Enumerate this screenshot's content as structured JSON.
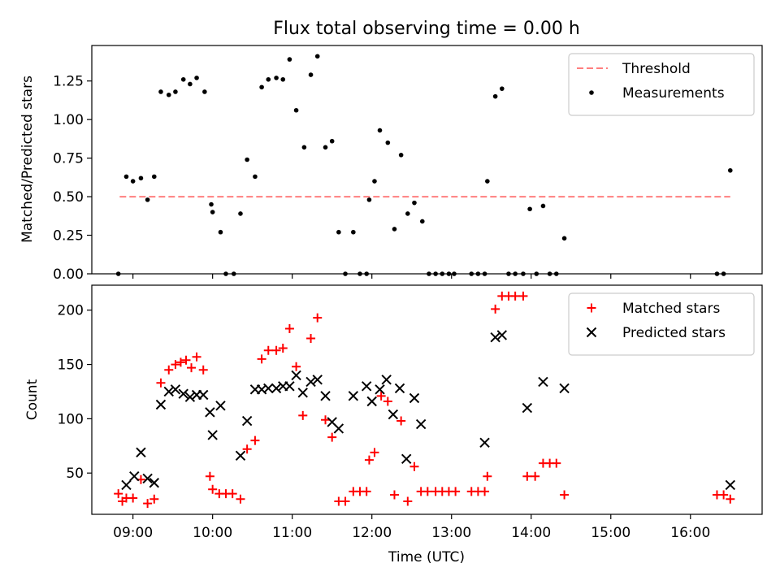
{
  "chart_data": [
    {
      "type": "scatter",
      "title": "Flux total observing time = 0.00 h",
      "xlabel": "",
      "ylabel": "Matched/Predicted stars",
      "ylim": [
        0,
        1.48
      ],
      "xlim": [
        "08:29",
        "16:54"
      ],
      "yticks": [
        "0.00",
        "0.25",
        "0.50",
        "0.75",
        "1.00",
        "1.25"
      ],
      "legend_position": "top-right",
      "threshold": {
        "name": "Threshold",
        "value": 0.5,
        "x_start": "08:50",
        "x_end": "16:30",
        "color": "#ff7f7f"
      },
      "series": [
        {
          "name": "Measurements",
          "color": "#000000",
          "marker": "dot",
          "points": [
            [
              "08:49",
              0.0
            ],
            [
              "08:55",
              0.63
            ],
            [
              "09:00",
              0.6
            ],
            [
              "09:06",
              0.62
            ],
            [
              "09:11",
              0.48
            ],
            [
              "09:16",
              0.63
            ],
            [
              "09:21",
              1.18
            ],
            [
              "09:27",
              1.16
            ],
            [
              "09:32",
              1.18
            ],
            [
              "09:38",
              1.26
            ],
            [
              "09:43",
              1.23
            ],
            [
              "09:48",
              1.27
            ],
            [
              "09:54",
              1.18
            ],
            [
              "09:59",
              0.45
            ],
            [
              "10:00",
              0.4
            ],
            [
              "10:06",
              0.27
            ],
            [
              "10:10",
              0.0
            ],
            [
              "10:16",
              0.0
            ],
            [
              "10:21",
              0.39
            ],
            [
              "10:26",
              0.74
            ],
            [
              "10:32",
              0.63
            ],
            [
              "10:37",
              1.21
            ],
            [
              "10:42",
              1.26
            ],
            [
              "10:48",
              1.27
            ],
            [
              "10:53",
              1.26
            ],
            [
              "10:58",
              1.39
            ],
            [
              "11:03",
              1.06
            ],
            [
              "11:09",
              0.82
            ],
            [
              "11:14",
              1.29
            ],
            [
              "11:19",
              1.41
            ],
            [
              "11:25",
              0.82
            ],
            [
              "11:30",
              0.86
            ],
            [
              "11:35",
              0.27
            ],
            [
              "11:40",
              0.0
            ],
            [
              "11:46",
              0.27
            ],
            [
              "11:51",
              0.0
            ],
            [
              "11:56",
              0.0
            ],
            [
              "11:58",
              0.48
            ],
            [
              "12:02",
              0.6
            ],
            [
              "12:06",
              0.93
            ],
            [
              "12:12",
              0.85
            ],
            [
              "12:17",
              0.29
            ],
            [
              "12:22",
              0.77
            ],
            [
              "12:27",
              0.39
            ],
            [
              "12:32",
              0.46
            ],
            [
              "12:38",
              0.34
            ],
            [
              "12:43",
              0.0
            ],
            [
              "12:48",
              0.0
            ],
            [
              "12:53",
              0.0
            ],
            [
              "12:58",
              0.0
            ],
            [
              "13:02",
              0.0
            ],
            [
              "13:15",
              0.0
            ],
            [
              "13:20",
              0.0
            ],
            [
              "13:25",
              0.0
            ],
            [
              "13:27",
              0.6
            ],
            [
              "13:33",
              1.15
            ],
            [
              "13:38",
              1.2
            ],
            [
              "13:43",
              0.0
            ],
            [
              "13:48",
              0.0
            ],
            [
              "13:54",
              0.0
            ],
            [
              "13:59",
              0.42
            ],
            [
              "14:04",
              0.0
            ],
            [
              "14:09",
              0.44
            ],
            [
              "14:14",
              0.0
            ],
            [
              "14:19",
              0.0
            ],
            [
              "14:25",
              0.23
            ],
            [
              "16:20",
              0.0
            ],
            [
              "16:25",
              0.0
            ],
            [
              "16:30",
              0.67
            ]
          ]
        }
      ]
    },
    {
      "type": "scatter",
      "title": "",
      "xlabel": "Time (UTC)",
      "ylabel": "Count",
      "ylim": [
        12,
        223
      ],
      "xlim": [
        "08:29",
        "16:54"
      ],
      "xticks": [
        "09:00",
        "10:00",
        "11:00",
        "12:00",
        "13:00",
        "14:00",
        "15:00",
        "16:00"
      ],
      "yticks": [
        "50",
        "100",
        "150",
        "200"
      ],
      "legend_position": "top-right",
      "series": [
        {
          "name": "Matched stars",
          "color": "#ff0000",
          "marker": "plus",
          "points": [
            [
              "08:49",
              31
            ],
            [
              "08:52",
              24
            ],
            [
              "08:55",
              27
            ],
            [
              "09:00",
              27
            ],
            [
              "09:06",
              44
            ],
            [
              "09:11",
              22
            ],
            [
              "09:16",
              26
            ],
            [
              "09:21",
              133
            ],
            [
              "09:27",
              145
            ],
            [
              "09:32",
              150
            ],
            [
              "09:36",
              152
            ],
            [
              "09:40",
              154
            ],
            [
              "09:44",
              147
            ],
            [
              "09:48",
              157
            ],
            [
              "09:53",
              145
            ],
            [
              "09:58",
              47
            ],
            [
              "10:00",
              35
            ],
            [
              "10:05",
              31
            ],
            [
              "10:10",
              31
            ],
            [
              "10:15",
              31
            ],
            [
              "10:21",
              26
            ],
            [
              "10:26",
              72
            ],
            [
              "10:32",
              80
            ],
            [
              "10:37",
              155
            ],
            [
              "10:42",
              163
            ],
            [
              "10:48",
              163
            ],
            [
              "10:53",
              165
            ],
            [
              "10:58",
              183
            ],
            [
              "11:03",
              148
            ],
            [
              "11:08",
              103
            ],
            [
              "11:14",
              174
            ],
            [
              "11:19",
              193
            ],
            [
              "11:25",
              99
            ],
            [
              "11:30",
              83
            ],
            [
              "11:35",
              24
            ],
            [
              "11:40",
              24
            ],
            [
              "11:46",
              33
            ],
            [
              "11:51",
              33
            ],
            [
              "11:56",
              33
            ],
            [
              "11:58",
              62
            ],
            [
              "12:02",
              69
            ],
            [
              "12:07",
              121
            ],
            [
              "12:12",
              116
            ],
            [
              "12:17",
              30
            ],
            [
              "12:22",
              98
            ],
            [
              "12:27",
              24
            ],
            [
              "12:32",
              56
            ],
            [
              "12:37",
              33
            ],
            [
              "12:42",
              33
            ],
            [
              "12:48",
              33
            ],
            [
              "12:53",
              33
            ],
            [
              "12:58",
              33
            ],
            [
              "13:03",
              33
            ],
            [
              "13:15",
              33
            ],
            [
              "13:20",
              33
            ],
            [
              "13:25",
              33
            ],
            [
              "13:27",
              47
            ],
            [
              "13:33",
              201
            ],
            [
              "13:38",
              213
            ],
            [
              "13:43",
              213
            ],
            [
              "13:48",
              213
            ],
            [
              "13:54",
              213
            ],
            [
              "13:57",
              47
            ],
            [
              "14:03",
              47
            ],
            [
              "14:09",
              59
            ],
            [
              "14:14",
              59
            ],
            [
              "14:19",
              59
            ],
            [
              "14:25",
              30
            ],
            [
              "16:20",
              30
            ],
            [
              "16:25",
              30
            ],
            [
              "16:30",
              26
            ]
          ]
        },
        {
          "name": "Predicted stars",
          "color": "#000000",
          "marker": "x",
          "points": [
            [
              "08:55",
              39
            ],
            [
              "09:01",
              47
            ],
            [
              "09:06",
              69
            ],
            [
              "09:11",
              45
            ],
            [
              "09:16",
              41
            ],
            [
              "09:21",
              113
            ],
            [
              "09:27",
              125
            ],
            [
              "09:32",
              127
            ],
            [
              "09:38",
              123
            ],
            [
              "09:43",
              120
            ],
            [
              "09:48",
              122
            ],
            [
              "09:53",
              122
            ],
            [
              "09:58",
              106
            ],
            [
              "10:00",
              85
            ],
            [
              "10:06",
              112
            ],
            [
              "10:21",
              66
            ],
            [
              "10:26",
              98
            ],
            [
              "10:32",
              127
            ],
            [
              "10:37",
              127
            ],
            [
              "10:42",
              128
            ],
            [
              "10:48",
              128
            ],
            [
              "10:53",
              130
            ],
            [
              "10:58",
              130
            ],
            [
              "11:03",
              140
            ],
            [
              "11:08",
              124
            ],
            [
              "11:14",
              134
            ],
            [
              "11:19",
              136
            ],
            [
              "11:25",
              121
            ],
            [
              "11:30",
              97
            ],
            [
              "11:35",
              91
            ],
            [
              "11:46",
              121
            ],
            [
              "11:56",
              130
            ],
            [
              "12:00",
              116
            ],
            [
              "12:06",
              127
            ],
            [
              "12:11",
              136
            ],
            [
              "12:16",
              104
            ],
            [
              "12:21",
              128
            ],
            [
              "12:26",
              63
            ],
            [
              "12:32",
              119
            ],
            [
              "12:37",
              95
            ],
            [
              "13:25",
              78
            ],
            [
              "13:33",
              175
            ],
            [
              "13:38",
              177
            ],
            [
              "13:57",
              110
            ],
            [
              "14:09",
              134
            ],
            [
              "14:25",
              128
            ],
            [
              "16:30",
              39
            ]
          ]
        }
      ]
    }
  ]
}
